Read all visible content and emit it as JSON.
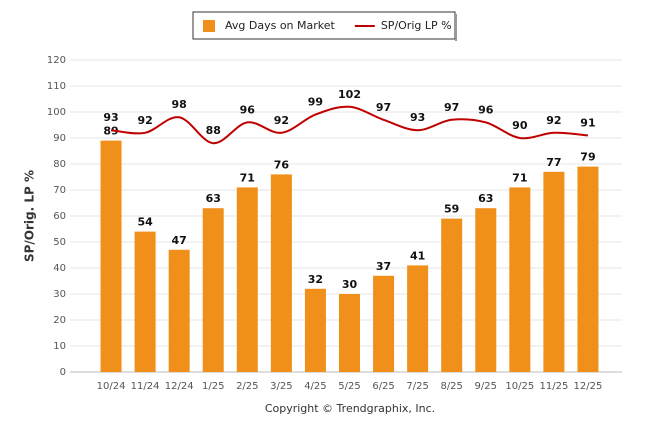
{
  "chart_data": {
    "type": "bar_line",
    "y_axis_label": "SP/Orig. LP %",
    "footer": "Copyright © Trendgraphix, Inc.",
    "categories": [
      "10/24",
      "11/24",
      "12/24",
      "1/25",
      "2/25",
      "3/25",
      "4/25",
      "5/25",
      "6/25",
      "7/25",
      "8/25",
      "9/25",
      "10/25",
      "11/25",
      "12/25"
    ],
    "series": [
      {
        "name": "Avg Days on Market",
        "type": "bar",
        "color": "#f0901a",
        "values": [
          89,
          54,
          47,
          63,
          71,
          76,
          32,
          30,
          37,
          41,
          59,
          63,
          71,
          77,
          79
        ]
      },
      {
        "name": "SP/Orig LP %",
        "type": "line",
        "color": "#c00000",
        "values": [
          93,
          92,
          98,
          88,
          96,
          92,
          99,
          102,
          97,
          93,
          97,
          96,
          90,
          92,
          91
        ]
      }
    ],
    "ylim": [
      0,
      120
    ],
    "yticks": [
      0,
      10,
      20,
      30,
      40,
      50,
      60,
      70,
      80,
      90,
      100,
      110,
      120
    ],
    "grid": true,
    "legend": "top"
  }
}
